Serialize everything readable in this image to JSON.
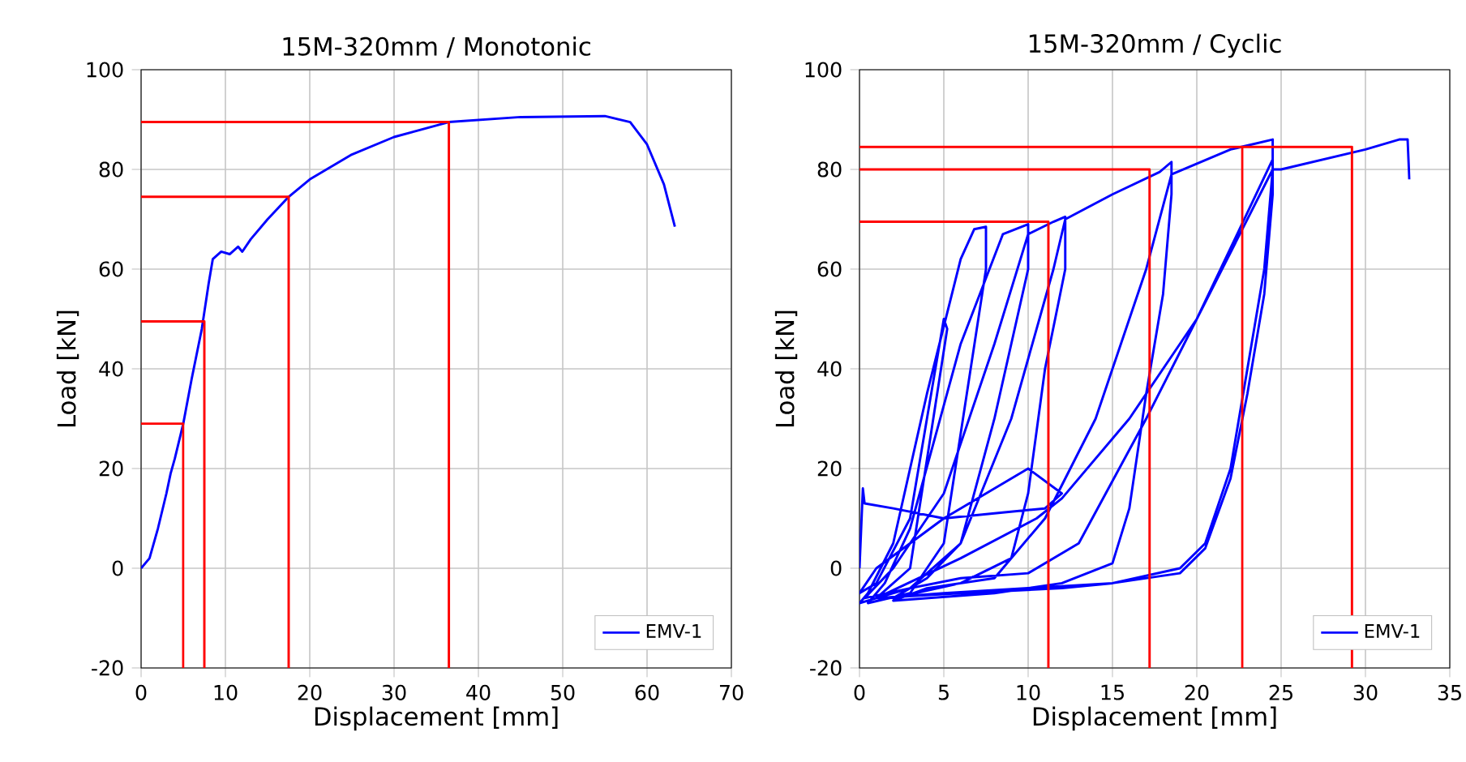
{
  "chart_data": [
    {
      "type": "line",
      "title": "15M-320mm / Monotonic",
      "xlabel": "Displacement [mm]",
      "ylabel": "Load [kN]",
      "xlim": [
        0,
        70
      ],
      "ylim": [
        -20,
        100
      ],
      "xticks": [
        0,
        10,
        20,
        30,
        40,
        50,
        60,
        70
      ],
      "yticks": [
        -20,
        0,
        20,
        40,
        60,
        80,
        100
      ],
      "grid": true,
      "legend": "bottom right",
      "series": [
        {
          "name": "EMV-1",
          "color": "#0000ff",
          "x": [
            0,
            1,
            2,
            3,
            3.5,
            4,
            5,
            6,
            7.2,
            8,
            8.5,
            9.5,
            10.5,
            11.5,
            12,
            13,
            15,
            17.5,
            20,
            25,
            30,
            36.5,
            45,
            55,
            58,
            60,
            62,
            63.3
          ],
          "values": [
            0,
            2,
            8,
            15,
            19,
            22,
            29,
            38,
            48,
            57,
            62,
            63.5,
            63,
            64.5,
            63.5,
            66,
            70,
            74.5,
            78,
            83,
            86.5,
            89.5,
            90.5,
            90.7,
            89.5,
            85,
            77,
            68.5
          ]
        },
        {
          "color": "#ff0000",
          "x": [
            0,
            5,
            5
          ],
          "values": [
            29,
            29,
            -20
          ]
        },
        {
          "color": "#ff0000",
          "x": [
            0,
            7.5,
            7.5
          ],
          "values": [
            49.5,
            49.5,
            -20
          ]
        },
        {
          "color": "#ff0000",
          "x": [
            0,
            17.5,
            17.5
          ],
          "values": [
            74.5,
            74.5,
            -20
          ]
        },
        {
          "color": "#ff0000",
          "x": [
            0,
            36.5,
            36.5
          ],
          "values": [
            89.5,
            89.5,
            -20
          ]
        }
      ]
    },
    {
      "type": "line",
      "title": "15M-320mm / Cyclic",
      "xlabel": "Displacement [mm]",
      "ylabel": "Load [kN]",
      "xlim": [
        0,
        35
      ],
      "ylim": [
        -20,
        100
      ],
      "xticks": [
        0,
        5,
        10,
        15,
        20,
        25,
        30,
        35
      ],
      "yticks": [
        -20,
        0,
        20,
        40,
        60,
        80,
        100
      ],
      "grid": true,
      "legend": "bottom right",
      "series": [
        {
          "name": "EMV-1",
          "color": "#0000ff",
          "x": [
            0,
            0.2,
            0.3,
            2,
            5,
            8,
            11,
            12,
            10,
            5,
            1,
            0,
            1,
            3,
            4.5,
            5,
            5.2,
            3,
            1,
            0,
            0.5,
            2,
            4,
            6,
            6.8,
            7.5,
            7.5,
            5,
            3,
            0.5,
            1.5,
            3,
            6,
            8.5,
            10,
            10,
            8,
            6,
            3,
            0.3,
            2,
            5,
            8,
            10,
            11.5,
            12.2,
            12.2,
            11,
            10,
            9,
            6,
            2,
            4,
            6,
            9,
            11.5,
            12.2,
            15,
            17.8,
            18.5,
            18.5,
            18,
            17,
            16,
            15,
            12,
            8,
            2,
            4,
            8,
            11,
            14,
            17,
            18.5,
            22,
            24.5,
            24.5,
            24,
            23,
            22,
            20.5,
            19,
            15,
            12,
            6,
            1,
            3,
            6,
            10,
            13,
            17,
            20,
            24.5,
            24.5,
            24,
            23,
            22,
            20.5,
            19,
            15,
            10,
            5,
            1,
            6,
            10.5,
            12,
            16,
            20,
            24.5,
            25,
            30,
            32,
            32.5,
            32.6
          ],
          "values": [
            0,
            16,
            13,
            12,
            10,
            11,
            12,
            15,
            20,
            10,
            0,
            -5,
            -3,
            10,
            40,
            50,
            48,
            0,
            -6,
            -7,
            -5,
            5,
            35,
            62,
            68,
            68.5,
            60,
            5,
            -5,
            -7,
            -3,
            8,
            45,
            67,
            69,
            60,
            30,
            5,
            -4,
            -6,
            0,
            15,
            45,
            67,
            69.5,
            70.5,
            60,
            40,
            15,
            2,
            -3,
            -6,
            -2,
            5,
            30,
            60,
            70,
            75,
            79.5,
            81.5,
            75,
            55,
            35,
            12,
            1,
            -3,
            -5,
            -6.5,
            -4,
            -2,
            10,
            30,
            60,
            79,
            84,
            86,
            80,
            60,
            40,
            20,
            5,
            0,
            -3,
            -4,
            -5,
            -6,
            -4,
            -2,
            -1,
            5,
            30,
            50,
            82,
            75,
            55,
            35,
            18,
            4,
            -1,
            -3,
            -4,
            -5,
            -6,
            2,
            10,
            14,
            30,
            50,
            80,
            80,
            84,
            86,
            86,
            78
          ]
        },
        {
          "color": "#ff0000",
          "x": [
            0,
            11.2,
            11.2
          ],
          "values": [
            69.5,
            69.5,
            -20
          ]
        },
        {
          "color": "#ff0000",
          "x": [
            0,
            17.2,
            17.2
          ],
          "values": [
            80,
            80,
            -20
          ]
        },
        {
          "color": "#ff0000",
          "x": [
            0,
            29.2,
            29.2
          ],
          "values": [
            84.5,
            84.5,
            -20
          ]
        },
        {
          "color": "#ff0000",
          "x": [
            22.7,
            22.7
          ],
          "values": [
            84.5,
            -20
          ]
        }
      ]
    }
  ]
}
